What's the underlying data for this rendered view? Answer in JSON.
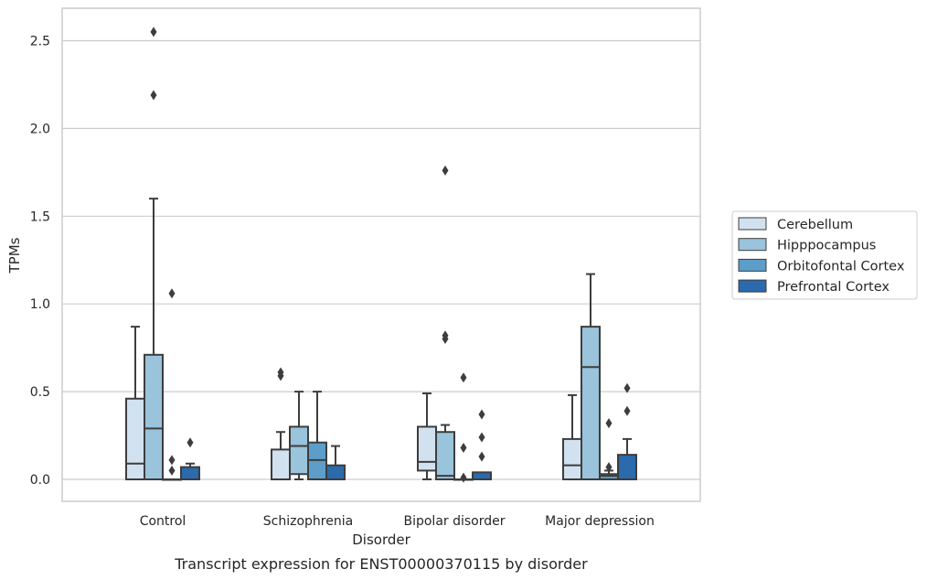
{
  "chart_data": {
    "type": "box",
    "title": "",
    "caption": "Transcript expression for ENST00000370115 by disorder",
    "xlabel": "Disorder",
    "ylabel": "TPMs",
    "ylim": [
      -0.12,
      2.68
    ],
    "yticks": [
      0.0,
      0.5,
      1.0,
      1.5,
      2.0,
      2.5
    ],
    "ytick_labels": [
      "0.0",
      "0.5",
      "1.0",
      "1.5",
      "2.0",
      "2.5"
    ],
    "grid": "horizontal",
    "legend_position": "right",
    "categories": [
      "Control",
      "Schizophrenia",
      "Bipolar disorder",
      "Major depression"
    ],
    "series": [
      {
        "name": "Cerebellum",
        "color": "#d1e1ef",
        "boxes": [
          {
            "q1": 0.0,
            "median": 0.09,
            "q3": 0.46,
            "whisker_low": 0.0,
            "whisker_high": 0.87,
            "outliers": []
          },
          {
            "q1": 0.0,
            "median": 0.0,
            "q3": 0.17,
            "whisker_low": 0.0,
            "whisker_high": 0.27,
            "outliers": [
              0.59,
              0.61
            ]
          },
          {
            "q1": 0.05,
            "median": 0.1,
            "q3": 0.3,
            "whisker_low": 0.0,
            "whisker_high": 0.49,
            "outliers": []
          },
          {
            "q1": 0.0,
            "median": 0.08,
            "q3": 0.23,
            "whisker_low": 0.0,
            "whisker_high": 0.48,
            "outliers": []
          }
        ]
      },
      {
        "name": "Hipppocampus",
        "color": "#9ac3dc",
        "boxes": [
          {
            "q1": 0.0,
            "median": 0.29,
            "q3": 0.71,
            "whisker_low": 0.0,
            "whisker_high": 1.6,
            "outliers": [
              2.19,
              2.55
            ]
          },
          {
            "q1": 0.03,
            "median": 0.19,
            "q3": 0.3,
            "whisker_low": 0.0,
            "whisker_high": 0.5,
            "outliers": []
          },
          {
            "q1": 0.0,
            "median": 0.02,
            "q3": 0.27,
            "whisker_low": 0.0,
            "whisker_high": 0.31,
            "outliers": [
              0.8,
              0.82,
              1.76
            ]
          },
          {
            "q1": 0.0,
            "median": 0.64,
            "q3": 0.87,
            "whisker_low": 0.0,
            "whisker_high": 1.17,
            "outliers": []
          }
        ]
      },
      {
        "name": "Orbitofontal Cortex",
        "color": "#5c9ec9",
        "boxes": [
          {
            "q1": 0.0,
            "median": 0.0,
            "q3": 0.0,
            "whisker_low": 0.0,
            "whisker_high": 0.0,
            "outliers": [
              0.05,
              0.11,
              1.06
            ]
          },
          {
            "q1": 0.0,
            "median": 0.11,
            "q3": 0.21,
            "whisker_low": 0.0,
            "whisker_high": 0.5,
            "outliers": []
          },
          {
            "q1": 0.0,
            "median": 0.0,
            "q3": 0.0,
            "whisker_low": 0.0,
            "whisker_high": 0.0,
            "outliers": [
              0.01,
              0.18,
              0.58
            ]
          },
          {
            "q1": 0.0,
            "median": 0.02,
            "q3": 0.03,
            "whisker_low": 0.0,
            "whisker_high": 0.05,
            "outliers": [
              0.07,
              0.32
            ]
          }
        ]
      },
      {
        "name": "Prefrontal Cortex",
        "color": "#2a6aad",
        "boxes": [
          {
            "q1": 0.0,
            "median": 0.0,
            "q3": 0.07,
            "whisker_low": 0.0,
            "whisker_high": 0.09,
            "outliers": [
              0.21
            ]
          },
          {
            "q1": 0.0,
            "median": 0.0,
            "q3": 0.08,
            "whisker_low": 0.0,
            "whisker_high": 0.19,
            "outliers": []
          },
          {
            "q1": 0.0,
            "median": 0.0,
            "q3": 0.04,
            "whisker_low": 0.0,
            "whisker_high": 0.04,
            "outliers": [
              0.13,
              0.24,
              0.37
            ]
          },
          {
            "q1": 0.0,
            "median": 0.0,
            "q3": 0.14,
            "whisker_low": 0.0,
            "whisker_high": 0.23,
            "outliers": [
              0.39,
              0.52
            ]
          }
        ]
      }
    ]
  }
}
